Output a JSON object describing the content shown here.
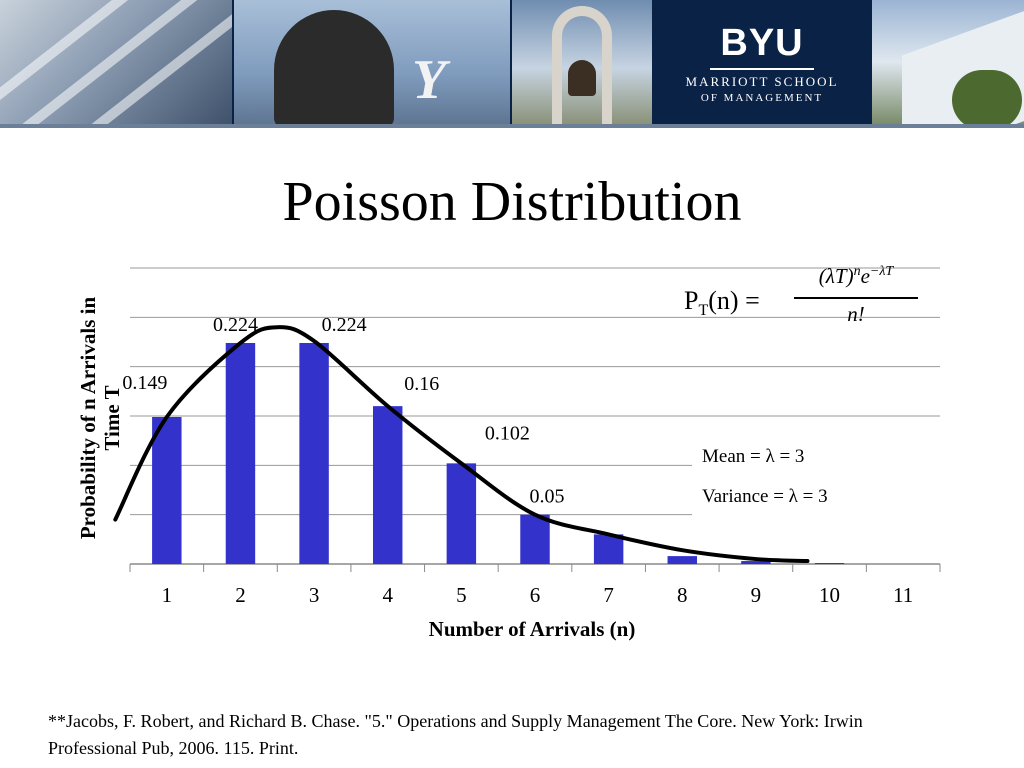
{
  "banner": {
    "logo_text": "BYU",
    "school_line1": "MARRIOTT SCHOOL",
    "school_line2": "OF MANAGEMENT"
  },
  "slide": {
    "title": "Poisson Distribution",
    "formula": {
      "lhs": "P",
      "lhs_sub": "T",
      "lhs_arg": "(n) =",
      "numerator": "(λT)ⁿe⁻ᵝᵀ",
      "denominator": "n!"
    },
    "stats": {
      "mean": "Mean = λ = 3",
      "variance": "Variance = λ = 3"
    },
    "source": "**Jacobs, F. Robert, and Richard B. Chase. \"5.\" Operations and Supply Management The Core. New York: Irwin Professional Pub, 2006. 115. Print."
  },
  "chart_data": {
    "type": "bar",
    "xlabel": "Number of Arrivals (n)",
    "ylabel": "Probability of n Arrivals in Time T",
    "categories": [
      "1",
      "2",
      "3",
      "4",
      "5",
      "6",
      "7",
      "8",
      "9",
      "10",
      "11"
    ],
    "values": [
      0.149,
      0.224,
      0.224,
      0.16,
      0.102,
      0.05,
      0.03,
      0.008,
      0.003,
      0.001,
      0
    ],
    "data_labels": [
      "0.149",
      "0.224",
      "0.224",
      "0.16",
      "0.102",
      "0.05",
      "",
      "",
      "",
      "",
      ""
    ],
    "bar_color": "#3333cc",
    "ylim": [
      0,
      0.3
    ],
    "grid": true,
    "curve": {
      "x": [
        0.3,
        1,
        2,
        2.5,
        3,
        4,
        5,
        6,
        7,
        8,
        9,
        9.7
      ],
      "y": [
        0.045,
        0.149,
        0.224,
        0.24,
        0.226,
        0.16,
        0.102,
        0.05,
        0.03,
        0.014,
        0.005,
        0.003
      ]
    }
  }
}
